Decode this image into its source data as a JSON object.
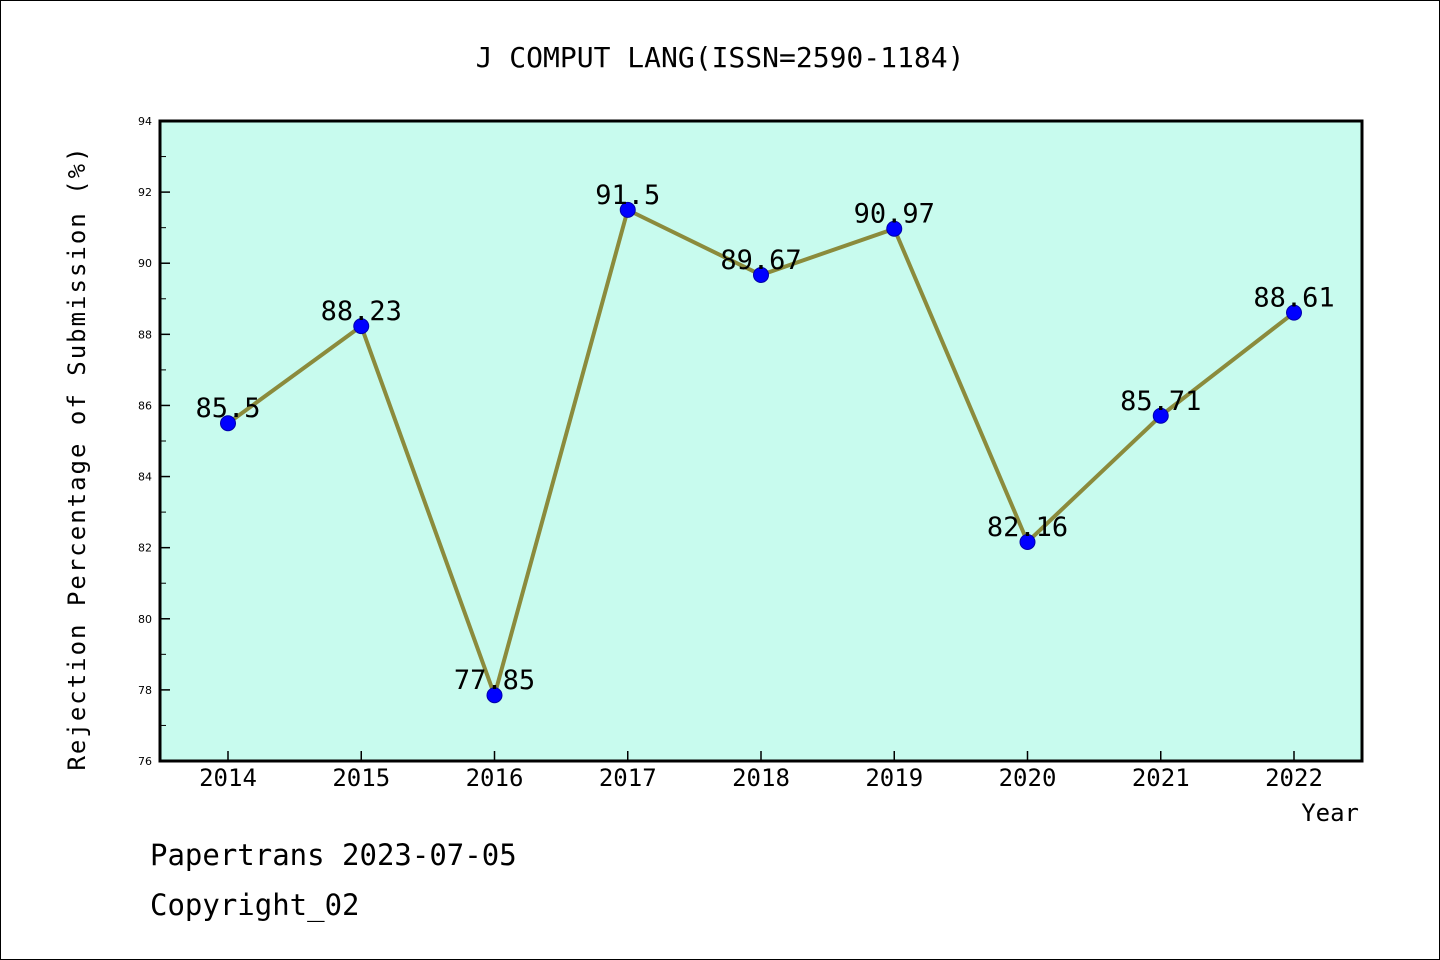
{
  "chart_data": {
    "type": "line",
    "title": "J COMPUT LANG(ISSN=2590-1184)",
    "xlabel": "Year",
    "ylabel": "Rejection Percentage of Submission (%)",
    "categories": [
      "2014",
      "2015",
      "2016",
      "2017",
      "2018",
      "2019",
      "2020",
      "2021",
      "2022"
    ],
    "values": [
      85.5,
      88.23,
      77.85,
      91.5,
      89.67,
      90.97,
      82.16,
      85.71,
      88.61
    ],
    "data_labels": [
      "85.5",
      "88.23",
      "77.85",
      "91.5",
      "89.67",
      "90.97",
      "82.16",
      "85.71",
      "88.61"
    ],
    "ylim": [
      76,
      94
    ],
    "yticks": [
      "76",
      "78",
      "80",
      "82",
      "84",
      "86",
      "88",
      "90",
      "92",
      "94"
    ],
    "grid": false,
    "colors": {
      "plot_background": "#c8fbee",
      "line": "#8b8b3c",
      "marker": "#0000ff"
    }
  },
  "footer": {
    "line1": "Papertrans 2023-07-05",
    "line2": "Copyright_02"
  }
}
